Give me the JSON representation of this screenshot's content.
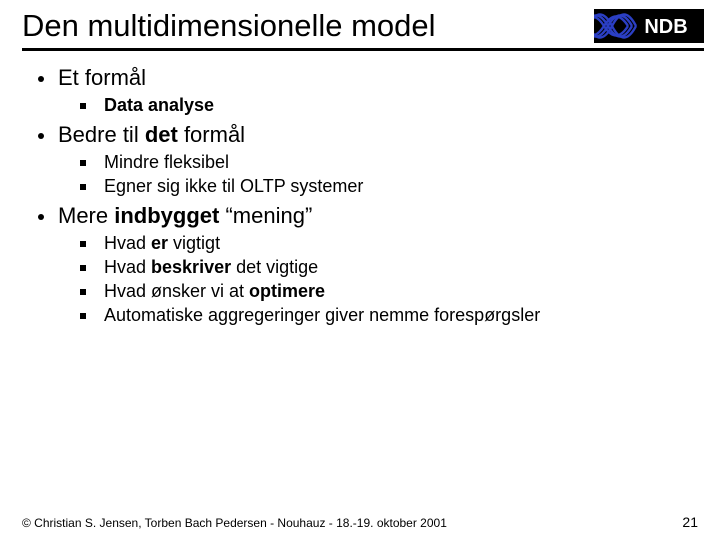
{
  "title": "Den multidimensionelle model",
  "logo": {
    "text": "NDB",
    "bg_color": "#000000",
    "wave_color": "#2b3fc4",
    "text_color": "#ffffff"
  },
  "colors": {
    "background": "#ffffff",
    "text": "#000000",
    "rule": "#000000",
    "bullet_l1": "#000000",
    "bullet_l2": "#000000"
  },
  "typography": {
    "title_fontsize": 31,
    "l1_fontsize": 22,
    "l2_fontsize": 18,
    "footer_fontsize": 12,
    "pagenum_fontsize": 14,
    "font_family": "Arial"
  },
  "bullets": [
    {
      "level": 1,
      "html": "Et formål"
    },
    {
      "level": 2,
      "html": "<b>Data analyse</b>"
    },
    {
      "level": 1,
      "html": "Bedre til <b>det</b> formål"
    },
    {
      "level": 2,
      "html": "Mindre fleksibel"
    },
    {
      "level": 2,
      "html": "Egner sig ikke til OLTP systemer"
    },
    {
      "level": 1,
      "html": "Mere <b>indbygget</b> “mening”"
    },
    {
      "level": 2,
      "html": "Hvad <b>er</b> vigtigt"
    },
    {
      "level": 2,
      "html": "Hvad <b>beskriver</b> det vigtige"
    },
    {
      "level": 2,
      "html": "Hvad ønsker vi at <b>optimere</b>"
    },
    {
      "level": 2,
      "html": "Automatiske aggregeringer giver nemme forespørgsler"
    }
  ],
  "footer": {
    "copyright": "© Christian S. Jensen, Torben Bach Pedersen - Nouhauz - 18.-19. oktober 2001",
    "page_number": "21"
  }
}
